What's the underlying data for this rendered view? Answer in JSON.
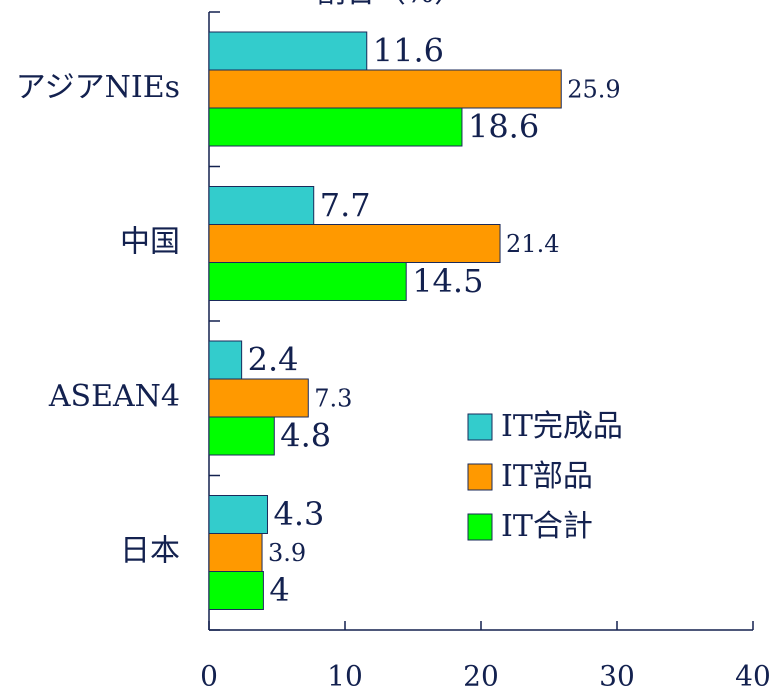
{
  "chart_data": {
    "type": "bar",
    "orientation": "horizontal",
    "title": "割合（%）",
    "categories": [
      "アジアNIEs",
      "中国",
      "ASEAN4",
      "日本"
    ],
    "series": [
      {
        "name": "IT完成品",
        "color": "#33cccc",
        "values": [
          11.6,
          7.7,
          2.4,
          4.3
        ]
      },
      {
        "name": "IT部品",
        "color": "#ff9900",
        "values": [
          25.9,
          21.4,
          7.3,
          3.9
        ]
      },
      {
        "name": "IT合計",
        "color": "#00ff00",
        "values": [
          18.6,
          14.5,
          4.8,
          4
        ]
      }
    ],
    "xlim": [
      0,
      40
    ],
    "xticks": [
      0,
      10,
      20,
      30,
      40
    ],
    "legend": "right"
  }
}
